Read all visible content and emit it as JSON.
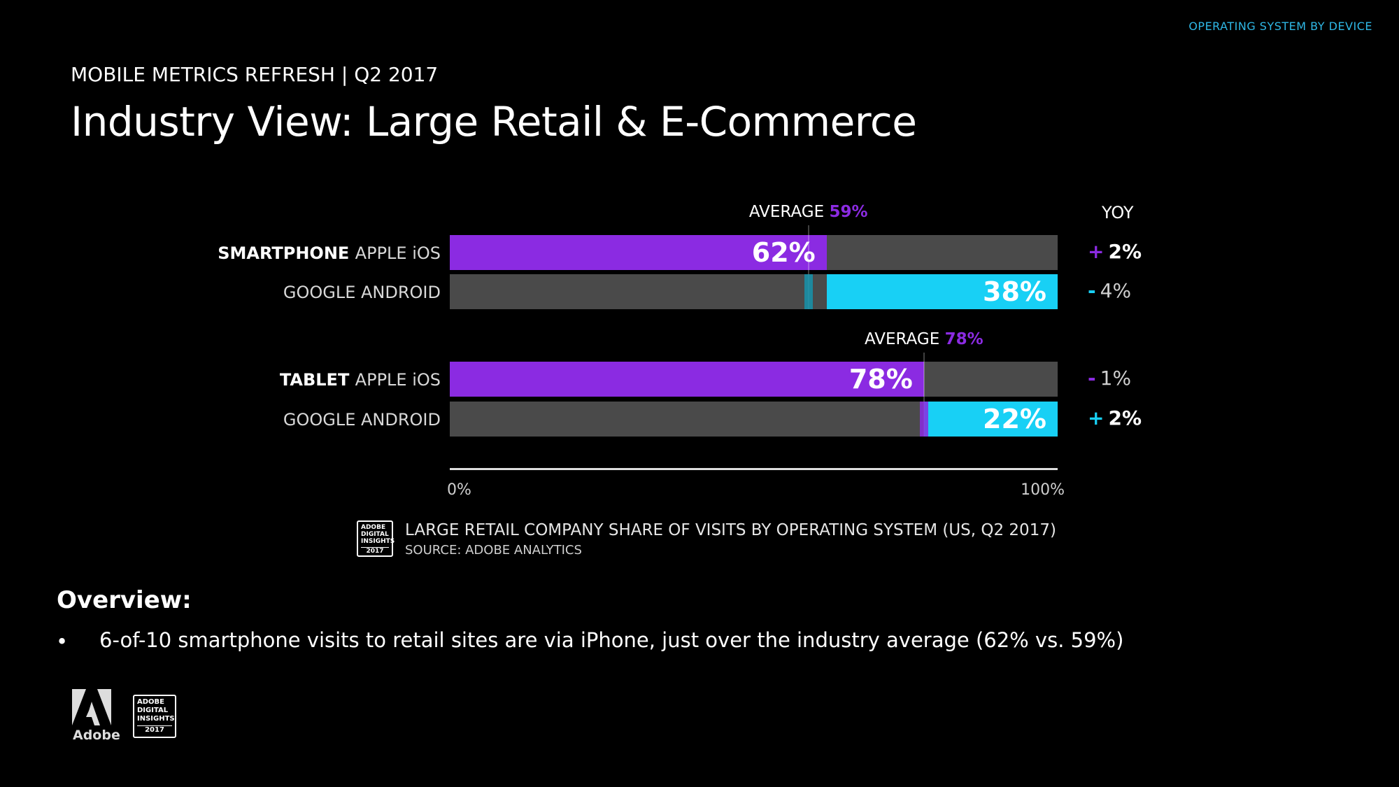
{
  "header": {
    "section_label": "OPERATING SYSTEM BY DEVICE",
    "subtitle": "MOBILE METRICS REFRESH | Q2 2017",
    "title": "Industry View: Large Retail & E-Commerce"
  },
  "colors": {
    "ios": "#8b2be2",
    "android": "#18d0f5",
    "track": "#4a4a4a",
    "accent": "#2fb8e6"
  },
  "chart_data": {
    "type": "bar",
    "orientation": "horizontal-stacked-100",
    "title": "LARGE RETAIL COMPANY SHARE OF VISITS BY OPERATING SYSTEM (US, Q2 2017)",
    "source": "SOURCE: ADOBE ANALYTICS",
    "xlim": [
      0,
      100
    ],
    "x_tick_labels": [
      "0%",
      "100%"
    ],
    "yoy_header": "YOY",
    "average_prefix": "AVERAGE",
    "groups": [
      {
        "device": "SMARTPHONE",
        "average": 59,
        "average_label": "59%",
        "rows": [
          {
            "os": "APPLE iOS",
            "value": 62,
            "value_label": "62%",
            "yoy_sign": "+",
            "yoy_value": "2%",
            "series": "ios"
          },
          {
            "os": "GOOGLE ANDROID",
            "value": 38,
            "value_label": "38%",
            "yoy_sign": "-",
            "yoy_value": "4%",
            "series": "android"
          }
        ]
      },
      {
        "device": "TABLET",
        "average": 78,
        "average_label": "78%",
        "rows": [
          {
            "os": "APPLE iOS",
            "value": 78,
            "value_label": "78%",
            "yoy_sign": "-",
            "yoy_value": "1%",
            "series": "ios"
          },
          {
            "os": "GOOGLE ANDROID",
            "value": 22,
            "value_label": "22%",
            "yoy_sign": "+",
            "yoy_value": "2%",
            "series": "android"
          }
        ]
      }
    ]
  },
  "overview": {
    "heading": "Overview:",
    "bullet": "•",
    "items": [
      "6-of-10 smartphone visits to retail sites are via iPhone, just over the industry average (62% vs. 59%)"
    ]
  },
  "branding": {
    "adobe_word": "Adobe",
    "badge_lines": [
      "ADOBE",
      "DIGITAL",
      "INSIGHTS"
    ],
    "badge_year": "2017"
  }
}
